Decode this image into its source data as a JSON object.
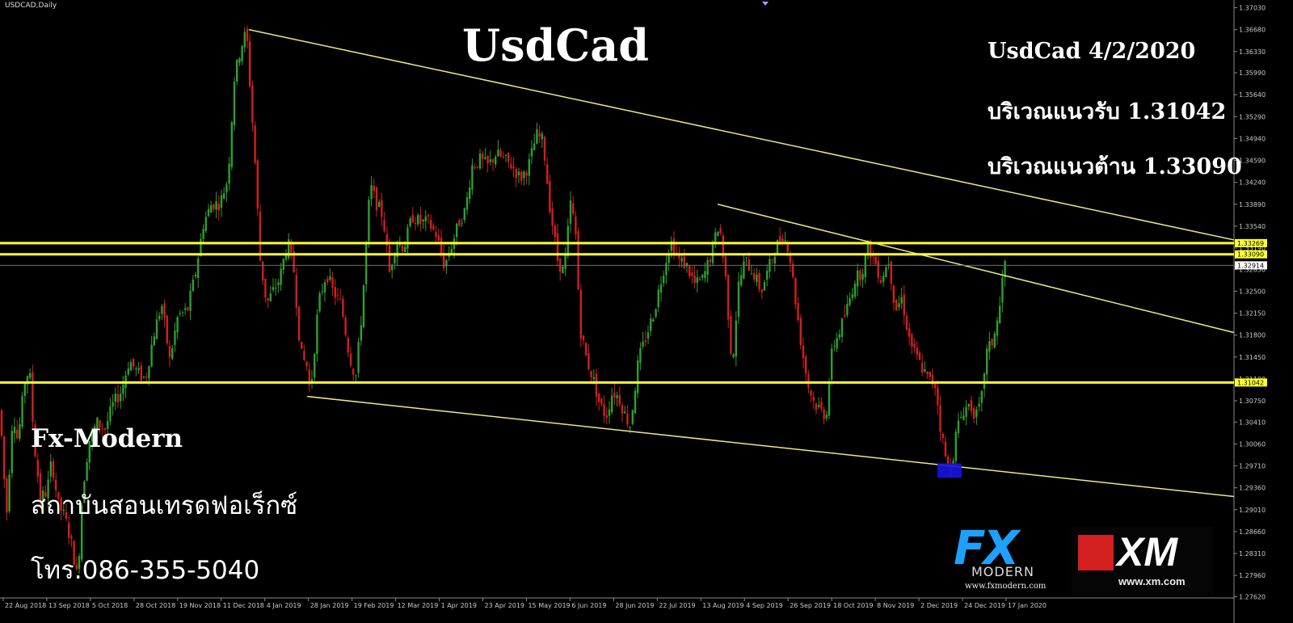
{
  "chart_data": {
    "type": "candlestick",
    "symbol": "USDCAD,Daily",
    "title": "UsdCad",
    "ylim": [
      1.276,
      1.3705
    ],
    "y_ticks": [
      "1.37030",
      "1.36680",
      "1.36330",
      "1.35990",
      "1.35640",
      "1.35290",
      "1.34940",
      "1.34590",
      "1.34240",
      "1.33890",
      "1.33540",
      "1.33190",
      "1.32850",
      "1.32500",
      "1.32150",
      "1.31800",
      "1.31450",
      "1.31100",
      "1.30750",
      "1.30410",
      "1.30060",
      "1.29710",
      "1.29360",
      "1.29010",
      "1.28660",
      "1.28310",
      "1.27960",
      "1.27620"
    ],
    "x_ticks": [
      "22 Aug 2018",
      "13 Sep 2018",
      "5 Oct 2018",
      "28 Oct 2018",
      "19 Nov 2018",
      "11 Dec 2018",
      "4 Jan 2019",
      "28 Jan 2019",
      "19 Feb 2019",
      "12 Mar 2019",
      "1 Apr 2019",
      "23 Apr 2019",
      "15 May 2019",
      "6 Jun 2019",
      "28 Jun 2019",
      "22 Jul 2019",
      "13 Aug 2019",
      "4 Sep 2019",
      "26 Sep 2019",
      "18 Oct 2019",
      "8 Nov 2019",
      "2 Dec 2019",
      "24 Dec 2019",
      "17 Jan 2020"
    ],
    "price_path": [
      [
        0,
        1.306
      ],
      [
        8,
        1.289
      ],
      [
        16,
        1.306
      ],
      [
        22,
        1.301
      ],
      [
        32,
        1.312
      ],
      [
        37,
        1.3115
      ],
      [
        42,
        1.301
      ],
      [
        50,
        1.292
      ],
      [
        58,
        1.293
      ],
      [
        64,
        1.298
      ],
      [
        72,
        1.291
      ],
      [
        80,
        1.289
      ],
      [
        88,
        1.285
      ],
      [
        96,
        1.279
      ],
      [
        102,
        1.293
      ],
      [
        110,
        1.301
      ],
      [
        120,
        1.304
      ],
      [
        130,
        1.303
      ],
      [
        140,
        1.307
      ],
      [
        150,
        1.309
      ],
      [
        160,
        1.314
      ],
      [
        170,
        1.312
      ],
      [
        180,
        1.311
      ],
      [
        190,
        1.318
      ],
      [
        200,
        1.323
      ],
      [
        210,
        1.314
      ],
      [
        220,
        1.321
      ],
      [
        232,
        1.322
      ],
      [
        242,
        1.328
      ],
      [
        252,
        1.336
      ],
      [
        262,
        1.339
      ],
      [
        272,
        1.339
      ],
      [
        282,
        1.343
      ],
      [
        290,
        1.359
      ],
      [
        298,
        1.364
      ],
      [
        305,
        1.3665
      ],
      [
        315,
        1.347
      ],
      [
        322,
        1.33
      ],
      [
        330,
        1.323
      ],
      [
        338,
        1.325
      ],
      [
        346,
        1.327
      ],
      [
        356,
        1.333
      ],
      [
        364,
        1.328
      ],
      [
        372,
        1.315
      ],
      [
        380,
        1.313
      ],
      [
        384,
        1.3085
      ],
      [
        394,
        1.323
      ],
      [
        404,
        1.328
      ],
      [
        412,
        1.325
      ],
      [
        422,
        1.323
      ],
      [
        432,
        1.315
      ],
      [
        440,
        1.311
      ],
      [
        448,
        1.322
      ],
      [
        458,
        1.342
      ],
      [
        466,
        1.339
      ],
      [
        474,
        1.337
      ],
      [
        482,
        1.328
      ],
      [
        490,
        1.333
      ],
      [
        500,
        1.332
      ],
      [
        510,
        1.337
      ],
      [
        520,
        1.336
      ],
      [
        530,
        1.336
      ],
      [
        540,
        1.334
      ],
      [
        550,
        1.329
      ],
      [
        558,
        1.332
      ],
      [
        568,
        1.336
      ],
      [
        576,
        1.338
      ],
      [
        584,
        1.345
      ],
      [
        594,
        1.346
      ],
      [
        604,
        1.345
      ],
      [
        614,
        1.347
      ],
      [
        624,
        1.346
      ],
      [
        634,
        1.345
      ],
      [
        644,
        1.343
      ],
      [
        654,
        1.345
      ],
      [
        664,
        1.35
      ],
      [
        672,
        1.349
      ],
      [
        680,
        1.339
      ],
      [
        690,
        1.33
      ],
      [
        698,
        1.328
      ],
      [
        706,
        1.339
      ],
      [
        712,
        1.335
      ],
      [
        718,
        1.319
      ],
      [
        726,
        1.314
      ],
      [
        734,
        1.311
      ],
      [
        742,
        1.307
      ],
      [
        750,
        1.305
      ],
      [
        758,
        1.309
      ],
      [
        766,
        1.308
      ],
      [
        774,
        1.305
      ],
      [
        780,
        1.3035
      ],
      [
        790,
        1.314
      ],
      [
        800,
        1.318
      ],
      [
        810,
        1.322
      ],
      [
        820,
        1.328
      ],
      [
        830,
        1.333
      ],
      [
        840,
        1.33
      ],
      [
        850,
        1.329
      ],
      [
        860,
        1.326
      ],
      [
        870,
        1.327
      ],
      [
        880,
        1.331
      ],
      [
        890,
        1.336
      ],
      [
        898,
        1.327
      ],
      [
        906,
        1.313
      ],
      [
        914,
        1.326
      ],
      [
        922,
        1.33
      ],
      [
        932,
        1.328
      ],
      [
        942,
        1.325
      ],
      [
        952,
        1.329
      ],
      [
        960,
        1.332
      ],
      [
        968,
        1.334
      ],
      [
        976,
        1.332
      ],
      [
        984,
        1.324
      ],
      [
        992,
        1.316
      ],
      [
        1000,
        1.31
      ],
      [
        1008,
        1.307
      ],
      [
        1016,
        1.306
      ],
      [
        1022,
        1.305
      ],
      [
        1030,
        1.316
      ],
      [
        1040,
        1.319
      ],
      [
        1050,
        1.323
      ],
      [
        1058,
        1.327
      ],
      [
        1066,
        1.328
      ],
      [
        1074,
        1.332
      ],
      [
        1082,
        1.33
      ],
      [
        1090,
        1.327
      ],
      [
        1100,
        1.33
      ],
      [
        1108,
        1.322
      ],
      [
        1116,
        1.324
      ],
      [
        1124,
        1.318
      ],
      [
        1132,
        1.315
      ],
      [
        1140,
        1.313
      ],
      [
        1148,
        1.311
      ],
      [
        1158,
        1.31
      ],
      [
        1164,
        1.303
      ],
      [
        1172,
        1.297
      ],
      [
        1178,
        1.2975
      ],
      [
        1184,
        1.303
      ],
      [
        1192,
        1.306
      ],
      [
        1200,
        1.307
      ],
      [
        1208,
        1.305
      ],
      [
        1214,
        1.307
      ],
      [
        1220,
        1.315
      ],
      [
        1228,
        1.317
      ],
      [
        1236,
        1.321
      ],
      [
        1242,
        1.329
      ],
      [
        1246,
        1.3295
      ]
    ],
    "horizontal_levels": [
      {
        "value": 1.33269,
        "label": "1.33269",
        "color": "#ffff30"
      },
      {
        "value": 1.3309,
        "label": "1.33090",
        "color": "#ffff30"
      },
      {
        "value": 1.31042,
        "label": "1.31042",
        "color": "#ffff30"
      }
    ],
    "current_price": {
      "value": 1.32914,
      "label": "1.32914"
    },
    "trendlines": [
      {
        "from": [
          308,
          1.3668
        ],
        "to": [
          1527,
          1.3332
        ],
        "color": "#e8e88a"
      },
      {
        "from": [
          888,
          1.3389
        ],
        "to": [
          1527,
          1.3184
        ],
        "color": "#e8e88a"
      },
      {
        "from": [
          380,
          1.3082
        ],
        "to": [
          1527,
          1.2922
        ],
        "color": "#e8e88a"
      }
    ],
    "highlight_box": {
      "x": [
        1160,
        1190
      ],
      "y": [
        1.2952,
        1.2975
      ],
      "color": "#1515e0"
    },
    "colors": {
      "bull": "#2ea02e",
      "bear": "#d31f1f",
      "background": "#000000",
      "axis_text": "#c8c8c8"
    }
  },
  "overlay": {
    "title": "UsdCad",
    "info_line1": "UsdCad 4/2/2020",
    "info_line2": "บริเวณแนวรับ 1.31042",
    "info_line3": "บริเวณแนวต้าน 1.33090",
    "brand_name": "Fx-Modern",
    "brand_tagline": "สถาบันสอนเทรดฟอเร็กซ์",
    "brand_phone": "โทร.086-355-5040"
  },
  "logos": {
    "fx_big": "FX",
    "fx_word": "MODERN",
    "fx_url": "www.fxmodern.com",
    "xm_text": "XM",
    "xm_url": "www.xm.com"
  }
}
